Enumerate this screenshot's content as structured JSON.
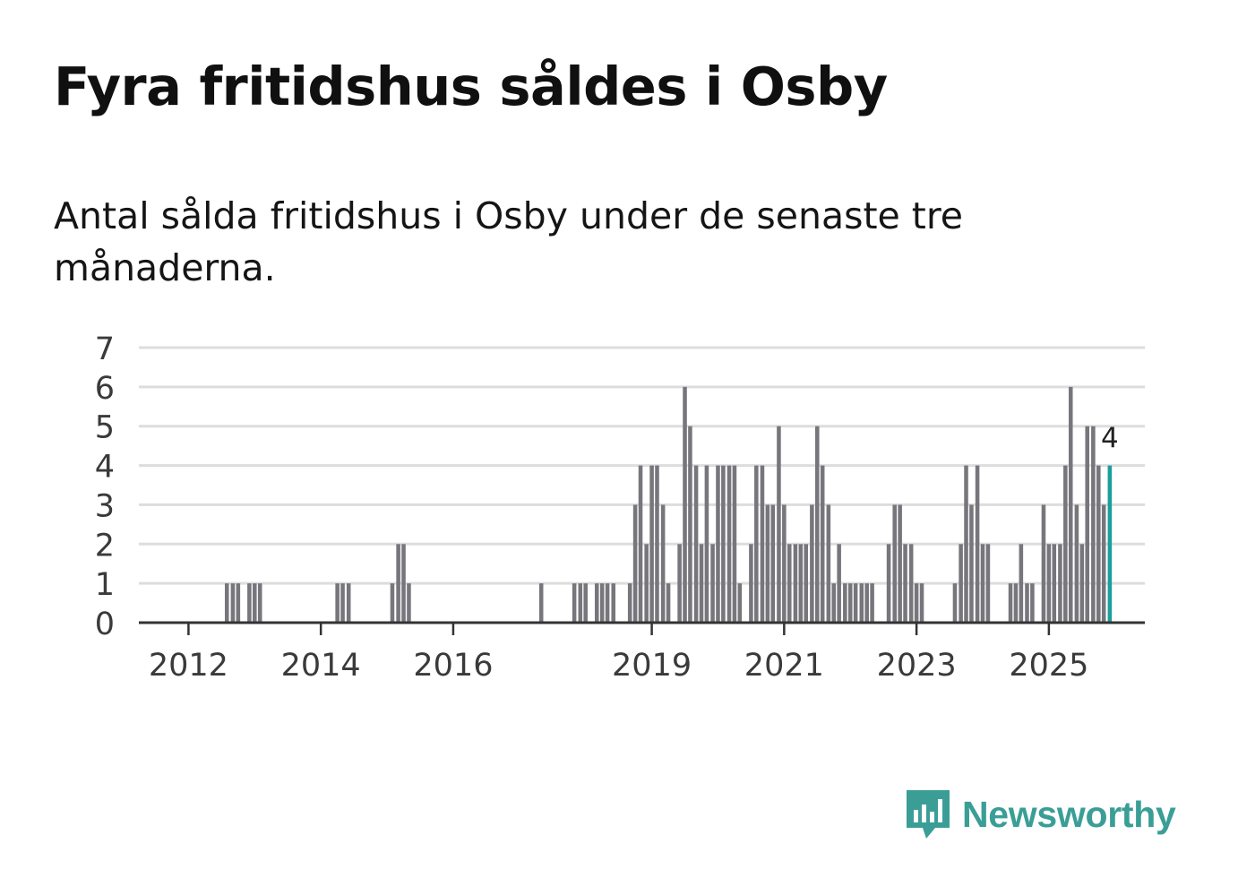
{
  "title": "Fyra fritidshus såldes i Osby",
  "subtitle": "Antal sålda fritidshus i Osby under de senaste tre månaderna.",
  "brand": {
    "name": "Newsworthy",
    "icon": "newsworthy-logo-icon"
  },
  "colors": {
    "bar": "#77767c",
    "highlight": "#1a9f9b",
    "grid": "#dddddd",
    "axis": "#333333",
    "text": "#3a3a3a",
    "brand": "#3a9e96"
  },
  "chart_data": {
    "type": "bar",
    "title": "Fyra fritidshus såldes i Osby",
    "xlabel": "",
    "ylabel": "",
    "ylim": [
      0,
      7
    ],
    "yticks": [
      "0",
      "1",
      "2",
      "3",
      "4",
      "5",
      "6",
      "7"
    ],
    "xticks": [
      {
        "label": "2012",
        "x": 2012.0
      },
      {
        "label": "2014",
        "x": 2014.0
      },
      {
        "label": "2016",
        "x": 2016.0
      },
      {
        "label": "2019",
        "x": 2019.0
      },
      {
        "label": "2021",
        "x": 2021.0
      },
      {
        "label": "2023",
        "x": 2023.0
      },
      {
        "label": "2025",
        "x": 2025.0
      }
    ],
    "x_start": 2011.25,
    "x_end": 2026.45,
    "bar_width_years": 0.0833,
    "series": [
      {
        "name": "Antal sålda fritidshus (rullande tre månader)",
        "points": [
          [
            2012.58,
            1
          ],
          [
            2012.67,
            1
          ],
          [
            2012.75,
            1
          ],
          [
            2012.92,
            1
          ],
          [
            2013.0,
            1
          ],
          [
            2013.08,
            1
          ],
          [
            2014.25,
            1
          ],
          [
            2014.33,
            1
          ],
          [
            2014.42,
            1
          ],
          [
            2015.08,
            1
          ],
          [
            2015.17,
            2
          ],
          [
            2015.25,
            2
          ],
          [
            2015.33,
            1
          ],
          [
            2017.33,
            1
          ],
          [
            2017.83,
            1
          ],
          [
            2017.92,
            1
          ],
          [
            2018.0,
            1
          ],
          [
            2018.17,
            1
          ],
          [
            2018.25,
            1
          ],
          [
            2018.33,
            1
          ],
          [
            2018.42,
            1
          ],
          [
            2018.67,
            1
          ],
          [
            2018.75,
            3
          ],
          [
            2018.83,
            4
          ],
          [
            2018.92,
            2
          ],
          [
            2019.0,
            4
          ],
          [
            2019.08,
            4
          ],
          [
            2019.17,
            3
          ],
          [
            2019.25,
            1
          ],
          [
            2019.42,
            2
          ],
          [
            2019.5,
            6
          ],
          [
            2019.58,
            5
          ],
          [
            2019.67,
            4
          ],
          [
            2019.75,
            2
          ],
          [
            2019.83,
            4
          ],
          [
            2019.92,
            2
          ],
          [
            2020.0,
            4
          ],
          [
            2020.08,
            4
          ],
          [
            2020.17,
            4
          ],
          [
            2020.25,
            4
          ],
          [
            2020.33,
            1
          ],
          [
            2020.5,
            2
          ],
          [
            2020.58,
            4
          ],
          [
            2020.67,
            4
          ],
          [
            2020.75,
            3
          ],
          [
            2020.83,
            3
          ],
          [
            2020.92,
            5
          ],
          [
            2021.0,
            3
          ],
          [
            2021.08,
            2
          ],
          [
            2021.17,
            2
          ],
          [
            2021.25,
            2
          ],
          [
            2021.33,
            2
          ],
          [
            2021.42,
            3
          ],
          [
            2021.5,
            5
          ],
          [
            2021.58,
            4
          ],
          [
            2021.67,
            3
          ],
          [
            2021.75,
            1
          ],
          [
            2021.83,
            2
          ],
          [
            2021.92,
            1
          ],
          [
            2022.0,
            1
          ],
          [
            2022.08,
            1
          ],
          [
            2022.17,
            1
          ],
          [
            2022.25,
            1
          ],
          [
            2022.33,
            1
          ],
          [
            2022.58,
            2
          ],
          [
            2022.67,
            3
          ],
          [
            2022.75,
            3
          ],
          [
            2022.83,
            2
          ],
          [
            2022.92,
            2
          ],
          [
            2023.0,
            1
          ],
          [
            2023.08,
            1
          ],
          [
            2023.58,
            1
          ],
          [
            2023.67,
            2
          ],
          [
            2023.75,
            4
          ],
          [
            2023.83,
            3
          ],
          [
            2023.92,
            4
          ],
          [
            2024.0,
            2
          ],
          [
            2024.08,
            2
          ],
          [
            2024.42,
            1
          ],
          [
            2024.5,
            1
          ],
          [
            2024.58,
            2
          ],
          [
            2024.67,
            1
          ],
          [
            2024.75,
            1
          ],
          [
            2024.92,
            3
          ],
          [
            2025.0,
            2
          ],
          [
            2025.08,
            2
          ],
          [
            2025.17,
            2
          ],
          [
            2025.25,
            4
          ],
          [
            2025.33,
            6
          ],
          [
            2025.42,
            3
          ],
          [
            2025.5,
            2
          ],
          [
            2025.58,
            5
          ],
          [
            2025.67,
            5
          ],
          [
            2025.75,
            4
          ],
          [
            2025.83,
            3
          ],
          [
            2025.92,
            4
          ]
        ]
      }
    ],
    "highlight_label": "4"
  }
}
